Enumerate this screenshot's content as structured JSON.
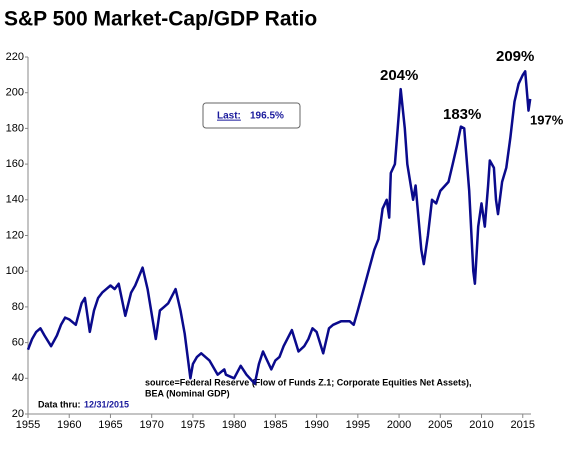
{
  "chart_data": {
    "type": "line",
    "title": "S&P 500 Market-Cap/GDP Ratio",
    "last_label": "Last:",
    "last_value": "196.5%",
    "data_thru_label": "Data thru:",
    "data_thru_date": "12/31/2015",
    "source_lines": [
      "source=Federal Reserve (Flow of Funds Z.1; Corporate Equities Net Assets),",
      "BEA (Nominal GDP)"
    ],
    "annotations": [
      "204%",
      "183%",
      "209%",
      "197%"
    ],
    "xlim": [
      1955,
      2016
    ],
    "xticks": [
      1955,
      1960,
      1965,
      1970,
      1975,
      1980,
      1985,
      1990,
      1995,
      2000,
      2005,
      2010,
      2015
    ],
    "ylim": [
      20,
      220
    ],
    "yticks": [
      20,
      40,
      60,
      80,
      100,
      120,
      140,
      160,
      180,
      200,
      220
    ],
    "grid": false,
    "series": [
      {
        "color": "#0a0a8c",
        "x": [
          1955,
          1955.5,
          1956,
          1956.5,
          1957,
          1957.8,
          1958.5,
          1959,
          1959.5,
          1960,
          1960.8,
          1961.5,
          1961.9,
          1962.5,
          1963,
          1963.5,
          1964,
          1964.5,
          1965,
          1965.5,
          1966,
          1966.8,
          1967.5,
          1968,
          1968.9,
          1969.5,
          1970.5,
          1971,
          1971.5,
          1972,
          1972.9,
          1973.5,
          1974,
          1974.7,
          1975,
          1975.5,
          1976,
          1977,
          1978,
          1978.8,
          1979,
          1980,
          1980.8,
          1981.5,
          1982.5,
          1983,
          1983.5,
          1984,
          1984.5,
          1985,
          1985.5,
          1986,
          1987,
          1987.8,
          1988.5,
          1989,
          1989.5,
          1990,
          1990.8,
          1991.5,
          1992,
          1993,
          1994,
          1994.5,
          1995,
          1996,
          1997,
          1997.5,
          1998,
          1998.5,
          1998.8,
          1999,
          1999.5,
          2000,
          2000.2,
          2000.7,
          2001,
          2001.7,
          2002,
          2002.7,
          2003,
          2003.5,
          2004,
          2004.5,
          2005,
          2006,
          2006.5,
          2007,
          2007.5,
          2007.9,
          2008.5,
          2009,
          2009.2,
          2009.6,
          2010,
          2010.4,
          2010.8,
          2011,
          2011.5,
          2011.75,
          2012,
          2012.5,
          2013,
          2013.5,
          2014,
          2014.5,
          2015,
          2015.3,
          2015.7,
          2015.9
        ],
        "values": [
          56,
          62,
          66,
          68,
          64,
          58,
          64,
          70,
          74,
          73,
          70,
          82,
          85,
          66,
          78,
          85,
          88,
          90,
          92,
          90,
          93,
          75,
          88,
          92,
          102,
          90,
          62,
          78,
          80,
          82,
          90,
          78,
          65,
          40,
          48,
          52,
          54,
          50,
          42,
          45,
          42,
          40,
          47,
          42,
          37,
          48,
          55,
          50,
          45,
          50,
          52,
          58,
          67,
          55,
          58,
          62,
          68,
          66,
          54,
          68,
          70,
          72,
          72,
          70,
          78,
          95,
          112,
          118,
          135,
          140,
          130,
          155,
          160,
          190,
          202,
          180,
          160,
          140,
          148,
          112,
          104,
          120,
          140,
          138,
          145,
          150,
          160,
          170,
          181,
          180,
          145,
          100,
          93,
          125,
          138,
          125,
          148,
          162,
          158,
          140,
          132,
          150,
          158,
          175,
          195,
          205,
          210,
          212,
          190,
          196.5
        ]
      }
    ]
  }
}
